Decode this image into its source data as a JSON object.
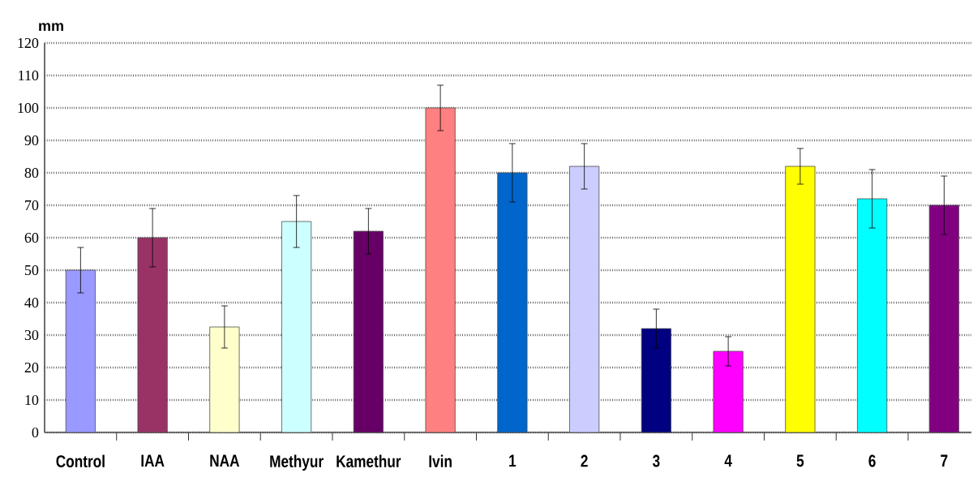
{
  "chart_data": {
    "type": "bar",
    "ylabel": "mm",
    "categories": [
      "Control",
      "IAA",
      "NAA",
      "Methyur",
      "Kamethur",
      "Ivin",
      "1",
      "2",
      "3",
      "4",
      "5",
      "6",
      "7"
    ],
    "values": [
      50,
      60,
      32.5,
      65,
      62,
      100,
      80,
      82,
      32,
      25,
      82,
      72,
      70
    ],
    "errors": [
      7,
      9,
      6.5,
      8,
      7,
      7,
      9,
      7,
      6,
      4.5,
      5.5,
      9,
      9
    ],
    "colors": [
      "#9999ff",
      "#993366",
      "#ffffcc",
      "#ccffff",
      "#660066",
      "#ff8080",
      "#0066cc",
      "#ccccff",
      "#000080",
      "#ff00ff",
      "#ffff00",
      "#00ffff",
      "#800080"
    ],
    "ylim": [
      0,
      120
    ],
    "yticks": [
      0,
      10,
      20,
      30,
      40,
      50,
      60,
      70,
      80,
      90,
      100,
      110,
      120
    ],
    "grid": "y"
  }
}
